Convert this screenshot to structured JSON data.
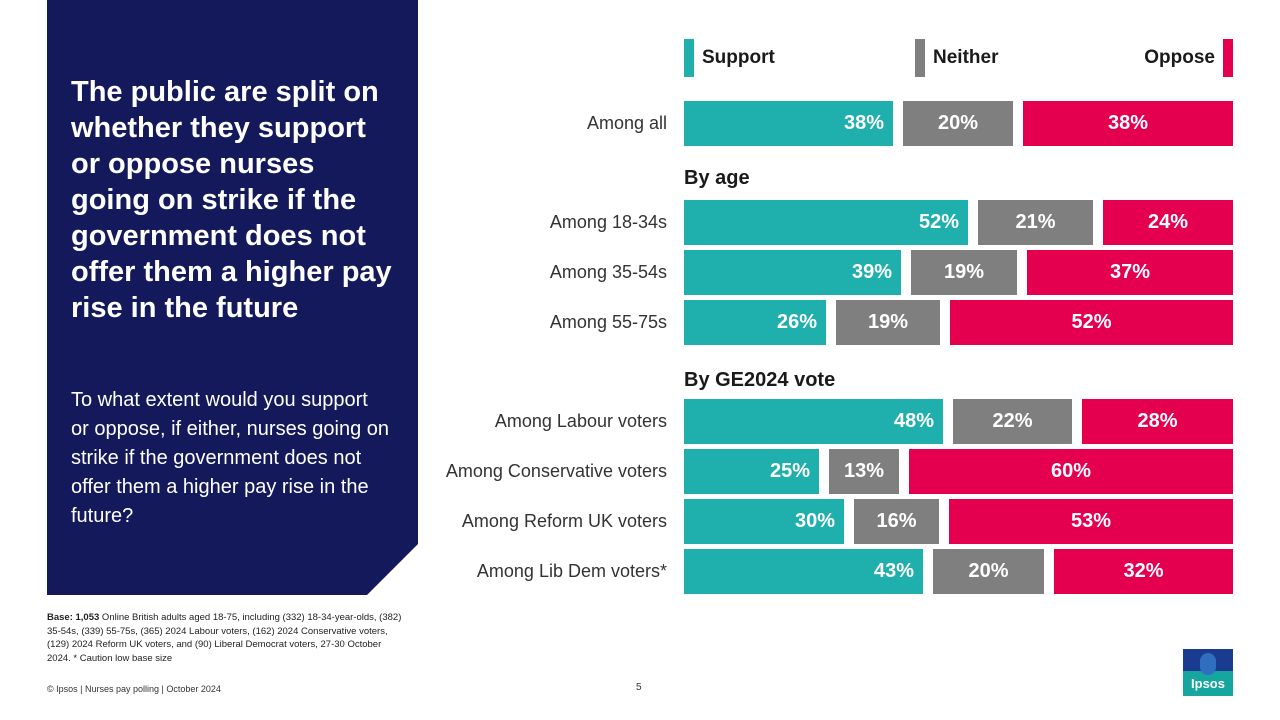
{
  "panel": {
    "headline": "The public are split on whether they support or oppose nurses going on strike if the government does not offer them a higher pay rise in the future",
    "question": "To what extent would you support or oppose, if either, nurses going on strike if the government does not offer them a higher pay rise in the future?"
  },
  "base": {
    "label": "Base: 1,053",
    "text": " Online British adults aged 18-75, including (332) 18-34-year-olds, (382) 35-54s, (339) 55-75s, (365) 2024 Labour voters, (162) 2024 Conservative voters, (129) 2024 Reform UK voters, and (90) Liberal Democrat voters, 27-30 October 2024.  * Caution low base size"
  },
  "footer": {
    "source": "© Ipsos | Nurses pay polling | October 2024",
    "page": "5"
  },
  "logo": {
    "text": "Ipsos"
  },
  "colors": {
    "support": "#1fb0ae",
    "neither": "#7f7f7f",
    "oppose": "#e5004f",
    "panel": "#13195a"
  },
  "chart_data": {
    "type": "bar",
    "orientation": "horizontal-stacked",
    "series": [
      {
        "name": "Support",
        "values": [
          38,
          52,
          39,
          26,
          48,
          25,
          30,
          43
        ]
      },
      {
        "name": "Neither",
        "values": [
          20,
          21,
          19,
          19,
          22,
          13,
          16,
          20
        ]
      },
      {
        "name": "Oppose",
        "values": [
          38,
          24,
          37,
          52,
          28,
          60,
          53,
          32
        ]
      }
    ],
    "categories": [
      "Among all",
      "Among 18-34s",
      "Among 35-54s",
      "Among 55-75s",
      "Among Labour voters",
      "Among Conservative voters",
      "Among Reform UK voters",
      "Among Lib Dem voters*"
    ],
    "groups": [
      {
        "title": "",
        "rows": [
          0
        ]
      },
      {
        "title": "By age",
        "rows": [
          1,
          2,
          3
        ]
      },
      {
        "title": "By GE2024 vote",
        "rows": [
          4,
          5,
          6,
          7
        ]
      }
    ],
    "value_suffix": "%",
    "legend": [
      "Support",
      "Neither",
      "Oppose"
    ],
    "legend_position": "top",
    "xlim": [
      0,
      100
    ]
  }
}
